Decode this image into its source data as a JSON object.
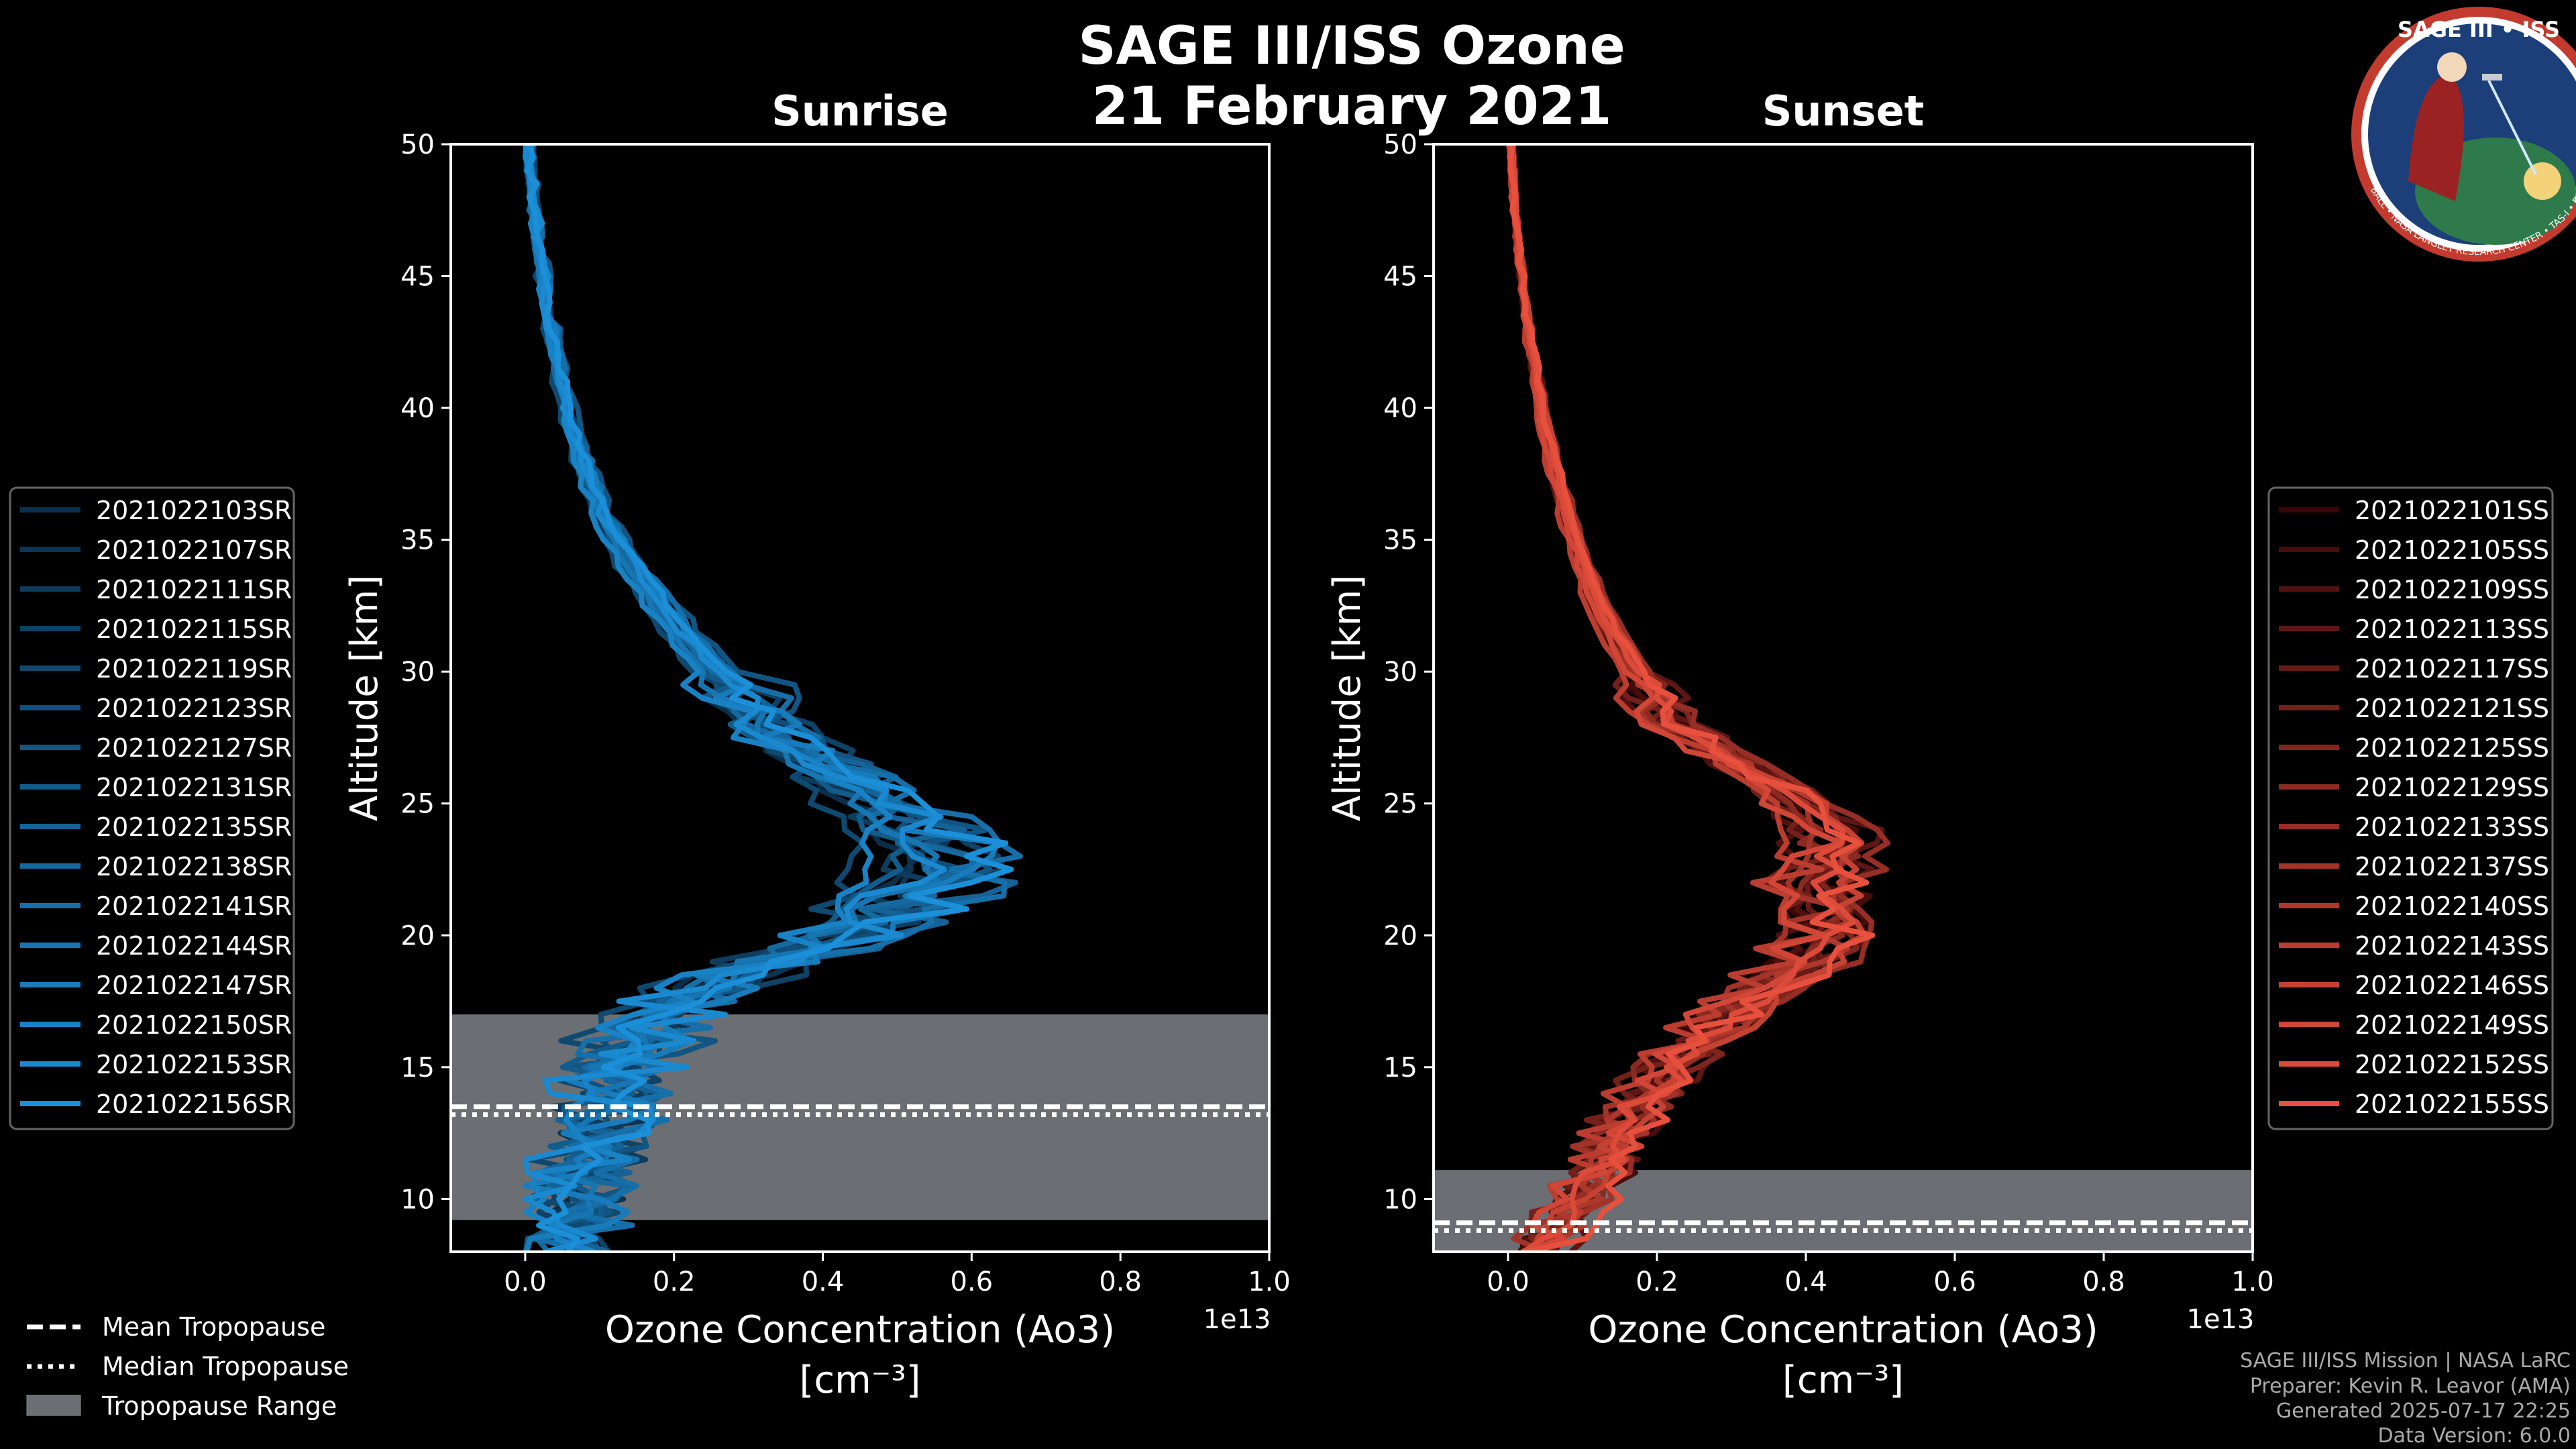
{
  "figure": {
    "title_line1": "SAGE III/ISS Ozone",
    "title_line2": "21 February 2021"
  },
  "badge": {
    "title": "SAGE III • ISS",
    "ring_text": "BALL • NASA LANGLEY RESEARCH CENTER • TAS-I • ESA",
    "colors": {
      "ring": "#c23b2e",
      "inner": "#1c3f7a",
      "globe": "#2f7a4a"
    }
  },
  "legend_common": [
    {
      "label": "Mean Tropopause",
      "style": "dashed"
    },
    {
      "label": "Median Tropopause",
      "style": "dotted"
    },
    {
      "label": "Tropopause Range",
      "style": "patch"
    }
  ],
  "credits": [
    "SAGE III/ISS Mission | NASA LaRC",
    "Preparer: Kevin R. Leavor (AMA)",
    "Generated 2025-07-17 22:25",
    "Data Version: 6.0.0"
  ],
  "colors": {
    "background": "#000000",
    "sunrise_dark": "#0b2f4a",
    "sunrise_light": "#1b8fd8",
    "sunset_dark": "#3a0808",
    "sunset_light": "#e8503e",
    "tropopause_patch": "#6b6e72"
  },
  "chart_data": [
    {
      "type": "line",
      "title": "Sunrise",
      "xlabel": "Ozone Concentration (Ao3)",
      "xlabel_units": "[cm⁻³]",
      "ylabel": "Altitude [km]",
      "x_multiplier": "1e13",
      "xlim": [
        -0.1,
        1.0
      ],
      "ylim": [
        8,
        50
      ],
      "xticks": [
        0.0,
        0.2,
        0.4,
        0.6,
        0.8,
        1.0
      ],
      "xtick_labels": [
        "0.0",
        "0.2",
        "0.4",
        "0.6",
        "0.8",
        "1.0"
      ],
      "yticks": [
        10,
        15,
        20,
        25,
        30,
        35,
        40,
        45,
        50
      ],
      "ytick_labels": [
        "10",
        "15",
        "20",
        "25",
        "30",
        "35",
        "40",
        "45",
        "50"
      ],
      "tropopause": {
        "mean": 13.5,
        "median": 13.2,
        "range": [
          9.2,
          17.0
        ]
      },
      "base_profile": {
        "altitude": [
          8,
          9,
          10,
          11,
          12,
          13,
          14,
          15,
          16,
          17,
          18,
          19,
          20,
          21,
          22,
          23,
          24,
          25,
          26,
          27,
          28,
          30,
          32,
          34,
          36,
          38,
          40,
          42,
          44,
          46,
          48,
          50
        ],
        "ozone": [
          0.05,
          0.06,
          0.07,
          0.08,
          0.09,
          0.1,
          0.11,
          0.12,
          0.14,
          0.18,
          0.25,
          0.33,
          0.42,
          0.5,
          0.54,
          0.55,
          0.52,
          0.47,
          0.42,
          0.37,
          0.32,
          0.25,
          0.19,
          0.14,
          0.1,
          0.075,
          0.055,
          0.04,
          0.028,
          0.018,
          0.01,
          0.005
        ]
      },
      "series": [
        {
          "name": "2021022103SR",
          "scale": 0.93,
          "noise": 0.03
        },
        {
          "name": "2021022107SR",
          "scale": 1.05,
          "noise": 0.04
        },
        {
          "name": "2021022111SR",
          "scale": 0.98,
          "noise": 0.05
        },
        {
          "name": "2021022115SR",
          "scale": 1.1,
          "noise": 0.04
        },
        {
          "name": "2021022119SR",
          "scale": 0.9,
          "noise": 0.05
        },
        {
          "name": "2021022123SR",
          "scale": 1.02,
          "noise": 0.03
        },
        {
          "name": "2021022127SR",
          "scale": 1.15,
          "noise": 0.06
        },
        {
          "name": "2021022131SR",
          "scale": 0.95,
          "noise": 0.04
        },
        {
          "name": "2021022135SR",
          "scale": 1.08,
          "noise": 0.05
        },
        {
          "name": "2021022138SR",
          "scale": 1.0,
          "noise": 0.04
        },
        {
          "name": "2021022141SR",
          "scale": 1.12,
          "noise": 0.05
        },
        {
          "name": "2021022144SR",
          "scale": 0.97,
          "noise": 0.03
        },
        {
          "name": "2021022147SR",
          "scale": 1.06,
          "noise": 0.05
        },
        {
          "name": "2021022150SR",
          "scale": 0.92,
          "noise": 0.04
        },
        {
          "name": "2021022153SR",
          "scale": 1.03,
          "noise": 0.06
        },
        {
          "name": "2021022156SR",
          "scale": 1.09,
          "noise": 0.04
        }
      ]
    },
    {
      "type": "line",
      "title": "Sunset",
      "xlabel": "Ozone Concentration (Ao3)",
      "xlabel_units": "[cm⁻³]",
      "ylabel": "Altitude [km]",
      "x_multiplier": "1e13",
      "xlim": [
        -0.1,
        1.0
      ],
      "ylim": [
        8,
        50
      ],
      "xticks": [
        0.0,
        0.2,
        0.4,
        0.6,
        0.8,
        1.0
      ],
      "xtick_labels": [
        "0.0",
        "0.2",
        "0.4",
        "0.6",
        "0.8",
        "1.0"
      ],
      "yticks": [
        10,
        15,
        20,
        25,
        30,
        35,
        40,
        45,
        50
      ],
      "ytick_labels": [
        "10",
        "15",
        "20",
        "25",
        "30",
        "35",
        "40",
        "45",
        "50"
      ],
      "tropopause": {
        "mean": 9.1,
        "median": 8.8,
        "range": [
          8.0,
          11.1
        ]
      },
      "base_profile": {
        "altitude": [
          8,
          9,
          10,
          11,
          12,
          13,
          14,
          15,
          16,
          17,
          18,
          19,
          20,
          21,
          22,
          23,
          24,
          25,
          26,
          27,
          28,
          30,
          32,
          34,
          36,
          38,
          40,
          42,
          44,
          46,
          48,
          50
        ],
        "ozone": [
          0.04,
          0.07,
          0.1,
          0.12,
          0.14,
          0.16,
          0.19,
          0.22,
          0.26,
          0.3,
          0.35,
          0.4,
          0.43,
          0.43,
          0.42,
          0.44,
          0.43,
          0.39,
          0.33,
          0.28,
          0.22,
          0.17,
          0.13,
          0.1,
          0.08,
          0.06,
          0.045,
          0.033,
          0.022,
          0.014,
          0.008,
          0.004
        ]
      },
      "series": [
        {
          "name": "2021022101SS",
          "scale": 0.95,
          "noise": 0.02
        },
        {
          "name": "2021022105SS",
          "scale": 1.05,
          "noise": 0.03
        },
        {
          "name": "2021022109SS",
          "scale": 0.9,
          "noise": 0.02
        },
        {
          "name": "2021022113SS",
          "scale": 1.1,
          "noise": 0.03
        },
        {
          "name": "2021022117SS",
          "scale": 1.0,
          "noise": 0.02
        },
        {
          "name": "2021022121SS",
          "scale": 0.93,
          "noise": 0.03
        },
        {
          "name": "2021022125SS",
          "scale": 1.07,
          "noise": 0.02
        },
        {
          "name": "2021022129SS",
          "scale": 0.98,
          "noise": 0.03
        },
        {
          "name": "2021022133SS",
          "scale": 1.12,
          "noise": 0.02
        },
        {
          "name": "2021022137SS",
          "scale": 0.96,
          "noise": 0.03
        },
        {
          "name": "2021022140SS",
          "scale": 1.03,
          "noise": 0.02
        },
        {
          "name": "2021022143SS",
          "scale": 0.88,
          "noise": 0.03
        },
        {
          "name": "2021022146SS",
          "scale": 1.08,
          "noise": 0.02
        },
        {
          "name": "2021022149SS",
          "scale": 0.94,
          "noise": 0.03
        },
        {
          "name": "2021022152SS",
          "scale": 1.01,
          "noise": 0.02
        },
        {
          "name": "2021022155SS",
          "scale": 1.06,
          "noise": 0.03
        }
      ]
    }
  ]
}
